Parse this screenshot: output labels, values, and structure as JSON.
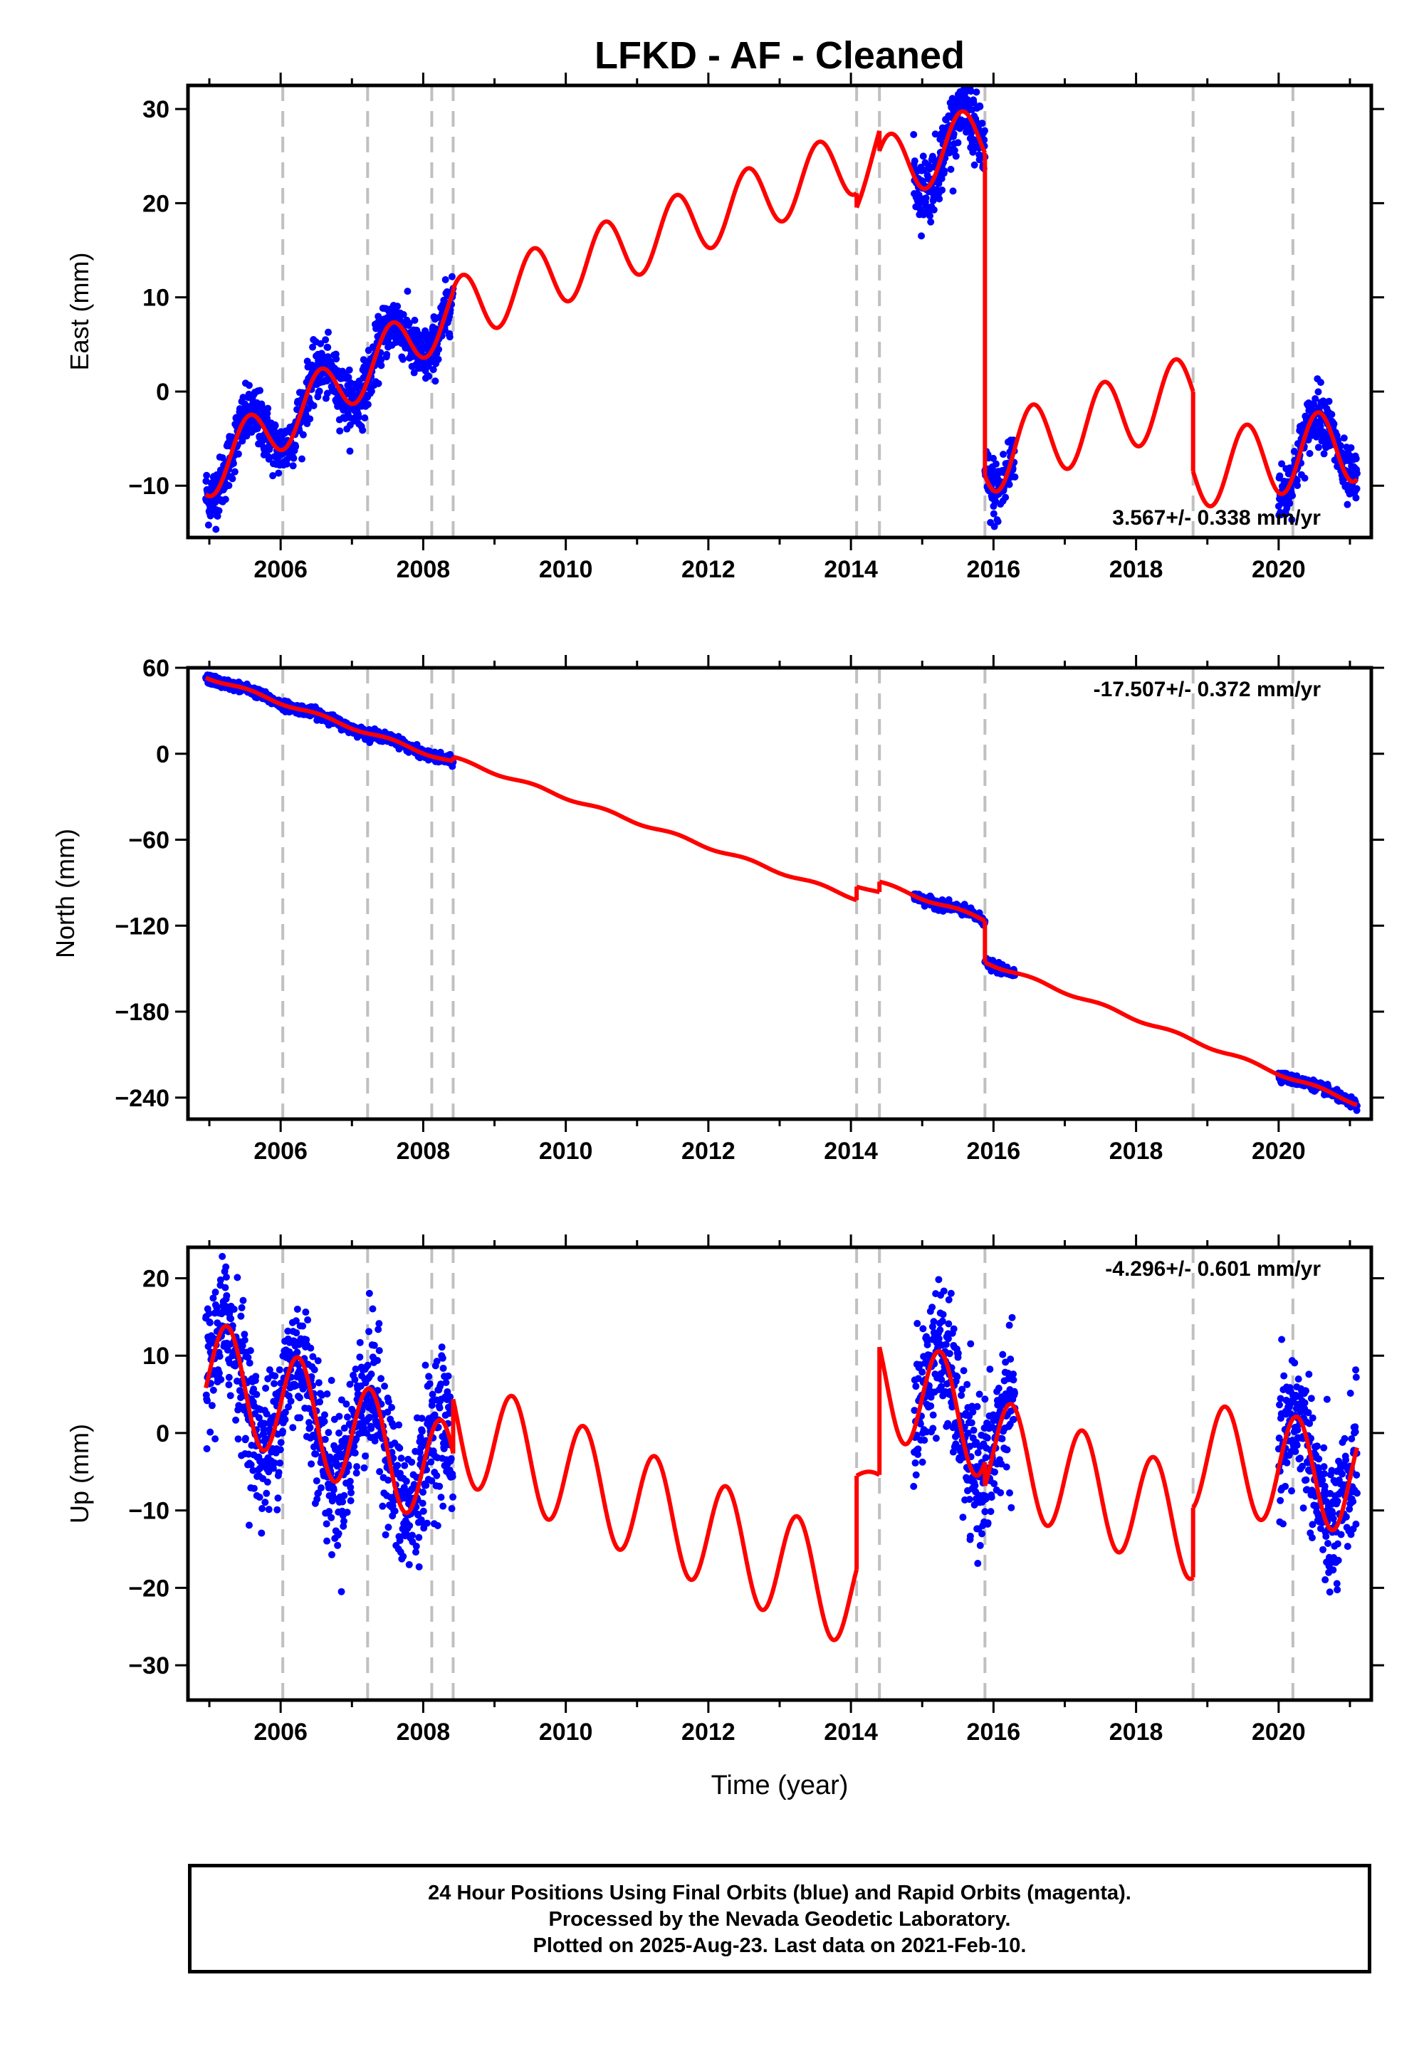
{
  "title": "LFKD  - AF - Cleaned",
  "xlabel": "Time (year)",
  "footer": {
    "line1": "24 Hour Positions Using Final Orbits (blue) and Rapid Orbits (magenta).",
    "line2": "Processed by the Nevada Geodetic Laboratory.",
    "line3": "Plotted on 2025-Aug-23. Last data on 2021-Feb-10."
  },
  "colors": {
    "points": "#0000ff",
    "model": "#ff0000",
    "steps": "#c0c0c0",
    "frame": "#000000"
  },
  "chart_data": [
    {
      "type": "scatter",
      "component": "East",
      "ylabel": "East (mm)",
      "rate_label": "3.567+/- 0.338 mm/yr",
      "xlim": [
        2004.7,
        2021.3
      ],
      "ylim": [
        -15.5,
        32.5
      ],
      "yticks": [
        30,
        20,
        10,
        0,
        -10
      ],
      "xticks": [
        2006,
        2008,
        2010,
        2012,
        2014,
        2016,
        2018,
        2020
      ],
      "step_lines": [
        2006.03,
        2007.22,
        2008.12,
        2008.42,
        2014.08,
        2014.4,
        2015.88,
        2018.8,
        2020.2
      ],
      "model_trend": [
        {
          "x0": 2004.95,
          "x1": 2008.42,
          "y0": -8.5,
          "y1": 8.5,
          "amp": 3.0,
          "phase": 0.3
        },
        {
          "x0": 2008.42,
          "x1": 2014.08,
          "y0": 8.5,
          "y1": 24.5,
          "amp": 3.5,
          "phase": 0.3
        },
        {
          "x0": 2014.08,
          "x1": 2014.4,
          "y0": 21.5,
          "y1": 26.5,
          "amp": 2.0,
          "phase": 0.3
        },
        {
          "x0": 2014.4,
          "x1": 2015.88,
          "y0": 23.5,
          "y1": 27.0,
          "amp": 3.5,
          "phase": 0.3
        },
        {
          "x0": 2015.88,
          "x1": 2018.8,
          "y0": -7.0,
          "y1": 0.0,
          "amp": 4.0,
          "phase": 0.3
        },
        {
          "x0": 2018.8,
          "x1": 2021.1,
          "y0": -8.5,
          "y1": -5.5,
          "amp": 4.0,
          "phase": 0.3
        }
      ],
      "data_segments": [
        {
          "x0": 2004.95,
          "x1": 2008.42,
          "scatter": 1.5
        },
        {
          "x0": 2014.88,
          "x1": 2015.88,
          "scatter": 1.8
        },
        {
          "x0": 2015.88,
          "x1": 2016.3,
          "scatter": 1.8
        },
        {
          "x0": 2020.0,
          "x1": 2021.1,
          "scatter": 1.5
        }
      ]
    },
    {
      "type": "scatter",
      "component": "North",
      "ylabel": "North (mm)",
      "rate_label": "-17.507+/- 0.372 mm/yr",
      "xlim": [
        2004.7,
        2021.3
      ],
      "ylim": [
        -255,
        60
      ],
      "yticks": [
        60,
        0,
        -60,
        -120,
        -180,
        -240
      ],
      "xticks": [
        2006,
        2008,
        2010,
        2012,
        2014,
        2016,
        2018,
        2020
      ],
      "step_lines": [
        2006.03,
        2007.22,
        2008.12,
        2008.42,
        2014.08,
        2014.4,
        2015.88,
        2018.8,
        2020.2
      ],
      "model_trend": [
        {
          "x0": 2004.95,
          "x1": 2008.42,
          "y0": 54,
          "y1": -6,
          "amp": 1.2,
          "phase": 0.3
        },
        {
          "x0": 2008.42,
          "x1": 2014.08,
          "y0": -3,
          "y1": -101,
          "amp": 1.2,
          "phase": 0.3
        },
        {
          "x0": 2014.08,
          "x1": 2014.4,
          "y0": -92,
          "y1": -97,
          "amp": 0.8,
          "phase": 0.3
        },
        {
          "x0": 2014.4,
          "x1": 2015.88,
          "y0": -90,
          "y1": -116,
          "amp": 1.2,
          "phase": 0.3
        },
        {
          "x0": 2015.88,
          "x1": 2018.8,
          "y0": -145,
          "y1": -200,
          "amp": 1.2,
          "phase": 0.3
        },
        {
          "x0": 2018.8,
          "x1": 2021.1,
          "y0": -200,
          "y1": -244,
          "amp": 1.2,
          "phase": 0.3
        }
      ],
      "data_segments": [
        {
          "x0": 2004.95,
          "x1": 2008.42,
          "scatter": 1.6
        },
        {
          "x0": 2014.88,
          "x1": 2015.88,
          "scatter": 1.6
        },
        {
          "x0": 2015.88,
          "x1": 2016.3,
          "scatter": 1.6
        },
        {
          "x0": 2020.0,
          "x1": 2021.1,
          "scatter": 1.6
        }
      ]
    },
    {
      "type": "scatter",
      "component": "Up",
      "ylabel": "Up (mm)",
      "rate_label": "-4.296+/- 0.601 mm/yr",
      "xlim": [
        2004.7,
        2021.3
      ],
      "ylim": [
        -34.5,
        24
      ],
      "yticks": [
        20,
        10,
        0,
        -10,
        -20,
        -30
      ],
      "xticks": [
        2006,
        2008,
        2010,
        2012,
        2014,
        2016,
        2018,
        2020
      ],
      "step_lines": [
        2006.03,
        2007.22,
        2008.12,
        2008.42,
        2014.08,
        2014.4,
        2015.88,
        2018.8,
        2020.2
      ],
      "model_trend": [
        {
          "x0": 2004.95,
          "x1": 2008.42,
          "y0": 8.0,
          "y1": -6.0,
          "amp": 7.0,
          "phase": 0.0
        },
        {
          "x0": 2008.42,
          "x1": 2014.08,
          "y0": 1.0,
          "y1": -21.0,
          "amp": 7.0,
          "phase": 0.0
        },
        {
          "x0": 2014.08,
          "x1": 2014.4,
          "y0": -6.0,
          "y1": -6.0,
          "amp": 1.0,
          "phase": 0.0
        },
        {
          "x0": 2014.4,
          "x1": 2015.88,
          "y0": 7.0,
          "y1": 1.0,
          "amp": 7.0,
          "phase": 0.0
        },
        {
          "x0": 2015.88,
          "x1": 2018.8,
          "y0": -2.0,
          "y1": -12.0,
          "amp": 7.0,
          "phase": 0.0
        },
        {
          "x0": 2018.8,
          "x1": 2021.1,
          "y0": -3.0,
          "y1": -6.0,
          "amp": 7.0,
          "phase": 0.0
        }
      ],
      "data_segments": [
        {
          "x0": 2004.95,
          "x1": 2008.42,
          "scatter": 4.5
        },
        {
          "x0": 2014.88,
          "x1": 2015.88,
          "scatter": 4.5
        },
        {
          "x0": 2015.88,
          "x1": 2016.3,
          "scatter": 4.5
        },
        {
          "x0": 2020.0,
          "x1": 2021.1,
          "scatter": 4.5
        }
      ]
    }
  ]
}
